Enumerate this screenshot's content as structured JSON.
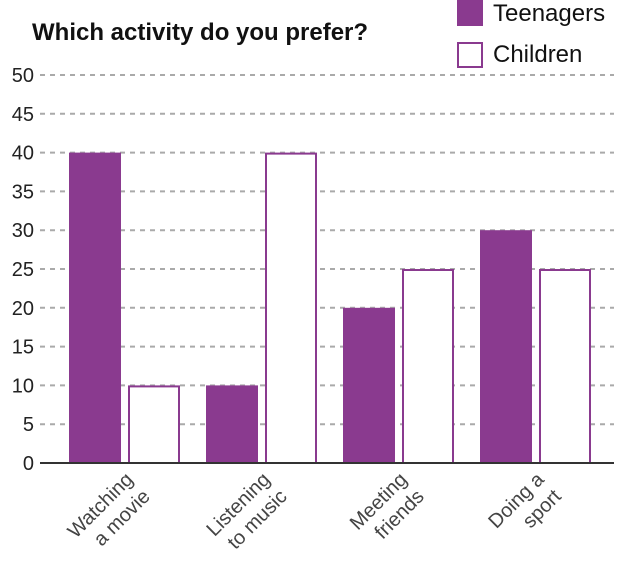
{
  "chart_data": {
    "type": "bar",
    "title": "Which activity do you prefer?",
    "xlabel": "",
    "ylabel": "",
    "ylim": [
      0,
      50
    ],
    "yticks": [
      "0",
      "5",
      "10",
      "15",
      "20",
      "25",
      "30",
      "35",
      "40",
      "45",
      "50"
    ],
    "categories": [
      [
        "Watching",
        "a movie"
      ],
      [
        "Listening",
        "to music"
      ],
      [
        "Meeting",
        "friends"
      ],
      [
        "Doing a",
        "sport"
      ]
    ],
    "series": [
      {
        "name": "Teenagers",
        "values": [
          40,
          10,
          20,
          30
        ],
        "style": "filled"
      },
      {
        "name": "Children",
        "values": [
          10,
          40,
          25,
          25
        ],
        "style": "outline"
      }
    ],
    "grid": true,
    "legend_position": "top-right",
    "colors": {
      "accent": "#8a3a8f",
      "grid": "#aaaaaa",
      "axis": "#333333",
      "background": "#ffffff"
    }
  }
}
